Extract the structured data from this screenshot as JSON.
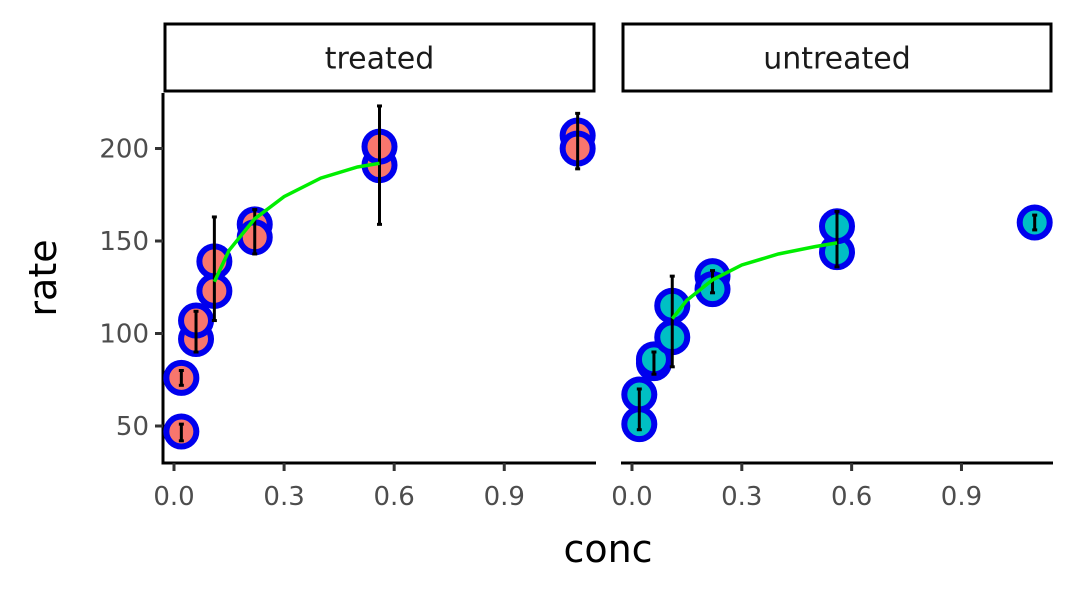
{
  "chart_data": {
    "type": "scatter",
    "facet_by": "state",
    "xlabel": "conc",
    "ylabel": "rate",
    "xlim": [
      -0.03,
      1.15
    ],
    "ylim": [
      30,
      230
    ],
    "xticks": [
      0.0,
      0.3,
      0.6,
      0.9
    ],
    "xtick_labels": [
      "0.0",
      "0.3",
      "0.6",
      "0.9"
    ],
    "yticks": [
      50,
      100,
      150,
      200
    ],
    "ytick_labels": [
      "50",
      "100",
      "150",
      "200"
    ],
    "grid": false,
    "point_outline_color": "#0000ee",
    "errorbar_color": "#000000",
    "fit_color": "#00ee00",
    "panels": [
      {
        "label": "treated",
        "fill_color": "#f8766d",
        "points": [
          {
            "x": 0.02,
            "y": 76
          },
          {
            "x": 0.02,
            "y": 47
          },
          {
            "x": 0.06,
            "y": 97
          },
          {
            "x": 0.06,
            "y": 107
          },
          {
            "x": 0.11,
            "y": 123
          },
          {
            "x": 0.11,
            "y": 139
          },
          {
            "x": 0.22,
            "y": 159
          },
          {
            "x": 0.22,
            "y": 152
          },
          {
            "x": 0.56,
            "y": 191
          },
          {
            "x": 0.56,
            "y": 201
          },
          {
            "x": 1.1,
            "y": 207
          },
          {
            "x": 1.1,
            "y": 200
          }
        ],
        "errorbars": [
          {
            "x": 0.02,
            "ymin": 72,
            "ymax": 80
          },
          {
            "x": 0.02,
            "ymin": 42,
            "ymax": 51
          },
          {
            "x": 0.06,
            "ymin": 90,
            "ymax": 112
          },
          {
            "x": 0.11,
            "ymin": 107,
            "ymax": 163
          },
          {
            "x": 0.22,
            "ymin": 143,
            "ymax": 167
          },
          {
            "x": 0.56,
            "ymin": 159,
            "ymax": 223
          },
          {
            "x": 1.1,
            "ymin": 189,
            "ymax": 219
          }
        ],
        "fit": {
          "x": [
            0.11,
            0.15,
            0.22,
            0.3,
            0.4,
            0.5,
            0.56
          ],
          "y": [
            128,
            145,
            162,
            174,
            184,
            190,
            192
          ]
        }
      },
      {
        "label": "untreated",
        "fill_color": "#00bfc4",
        "points": [
          {
            "x": 0.02,
            "y": 67
          },
          {
            "x": 0.02,
            "y": 51
          },
          {
            "x": 0.06,
            "y": 84
          },
          {
            "x": 0.06,
            "y": 86
          },
          {
            "x": 0.11,
            "y": 98
          },
          {
            "x": 0.11,
            "y": 115
          },
          {
            "x": 0.22,
            "y": 131
          },
          {
            "x": 0.22,
            "y": 124
          },
          {
            "x": 0.56,
            "y": 144
          },
          {
            "x": 0.56,
            "y": 158
          },
          {
            "x": 1.1,
            "y": 160
          }
        ],
        "errorbars": [
          {
            "x": 0.02,
            "ymin": 48,
            "ymax": 70
          },
          {
            "x": 0.06,
            "ymin": 78,
            "ymax": 90
          },
          {
            "x": 0.11,
            "ymin": 82,
            "ymax": 131
          },
          {
            "x": 0.22,
            "ymin": 122,
            "ymax": 134
          },
          {
            "x": 0.56,
            "ymin": 136,
            "ymax": 166
          },
          {
            "x": 1.1,
            "ymin": 156,
            "ymax": 164
          }
        ],
        "fit": {
          "x": [
            0.11,
            0.15,
            0.22,
            0.3,
            0.4,
            0.5,
            0.56
          ],
          "y": [
            108,
            118,
            129,
            137,
            143,
            147,
            149
          ]
        }
      }
    ]
  }
}
